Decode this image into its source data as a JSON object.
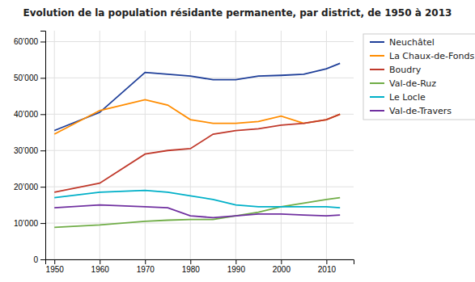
{
  "chart_data": {
    "type": "line",
    "title": "Evolution de la population résidante permanente, par district, de 1950 à 2013",
    "x": [
      1950,
      1960,
      1970,
      1975,
      1980,
      1985,
      1990,
      1995,
      2000,
      2005,
      2010,
      2013
    ],
    "series": [
      {
        "name": "Neuchâtel",
        "color": "#1F3F99",
        "values": [
          35500,
          40500,
          51500,
          51000,
          50500,
          49500,
          49500,
          50500,
          50700,
          51000,
          52500,
          54000
        ]
      },
      {
        "name": "La Chaux-de-Fonds",
        "color": "#FF8C00",
        "values": [
          34500,
          41000,
          44000,
          42500,
          38500,
          37500,
          37500,
          38000,
          39500,
          37500,
          38500,
          40000
        ]
      },
      {
        "name": "Boudry",
        "color": "#C0392B",
        "values": [
          18500,
          21000,
          29000,
          30000,
          30500,
          34500,
          35500,
          36000,
          37000,
          37500,
          38500,
          40000
        ]
      },
      {
        "name": "Val-de-Ruz",
        "color": "#70AD47",
        "values": [
          8800,
          9500,
          10500,
          10800,
          11000,
          11000,
          12000,
          13000,
          14500,
          15500,
          16500,
          17000
        ]
      },
      {
        "name": "Le Locle",
        "color": "#00B0C8",
        "values": [
          17000,
          18500,
          19000,
          18500,
          17500,
          16500,
          15000,
          14500,
          14500,
          14500,
          14500,
          14200
        ]
      },
      {
        "name": "Val-de-Travers",
        "color": "#7030A0",
        "values": [
          14200,
          15000,
          14500,
          14200,
          12000,
          11500,
          12000,
          12500,
          12500,
          12200,
          12000,
          12200
        ]
      }
    ],
    "xlim": [
      1948,
      2016
    ],
    "xticks": [
      1950,
      1960,
      1970,
      1980,
      1990,
      2000,
      2010
    ],
    "ylim": [
      0,
      63000
    ],
    "yticks": [
      0,
      {
        "value": 10000,
        "label": "10’000"
      },
      {
        "value": 20000,
        "label": "20’000"
      },
      {
        "value": 30000,
        "label": "30’000"
      },
      {
        "value": 40000,
        "label": "40’000"
      },
      {
        "value": 50000,
        "label": "50’000"
      },
      {
        "value": 60000,
        "label": "60’000"
      }
    ],
    "grid": true,
    "legend": "right"
  }
}
